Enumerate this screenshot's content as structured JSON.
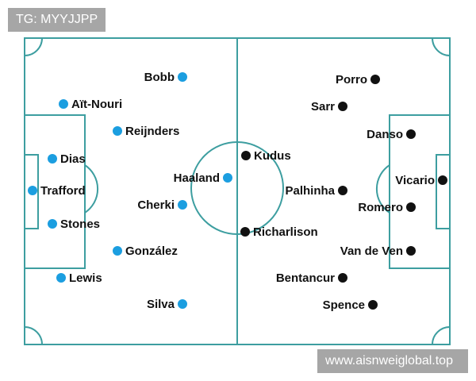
{
  "watermarks": {
    "top_left": "TG: MYYJJPP",
    "bottom_right": "www.aisnweiglobal.top"
  },
  "colors": {
    "pitch_lines": "#3d9ea0",
    "home_dot": "#1b9ee0",
    "away_dot": "#111111"
  },
  "home_team": {
    "players": [
      "Bobb",
      "Aït-Nouri",
      "Reijnders",
      "Dias",
      "Haaland",
      "Trafford",
      "Cherki",
      "Stones",
      "González",
      "Lewis",
      "Silva"
    ]
  },
  "away_team": {
    "players": [
      "Porro",
      "Sarr",
      "Danso",
      "Kudus",
      "Vicario",
      "Palhinha",
      "Romero",
      "Richarlison",
      "Van de Ven",
      "Bentancur",
      "Spence"
    ]
  }
}
